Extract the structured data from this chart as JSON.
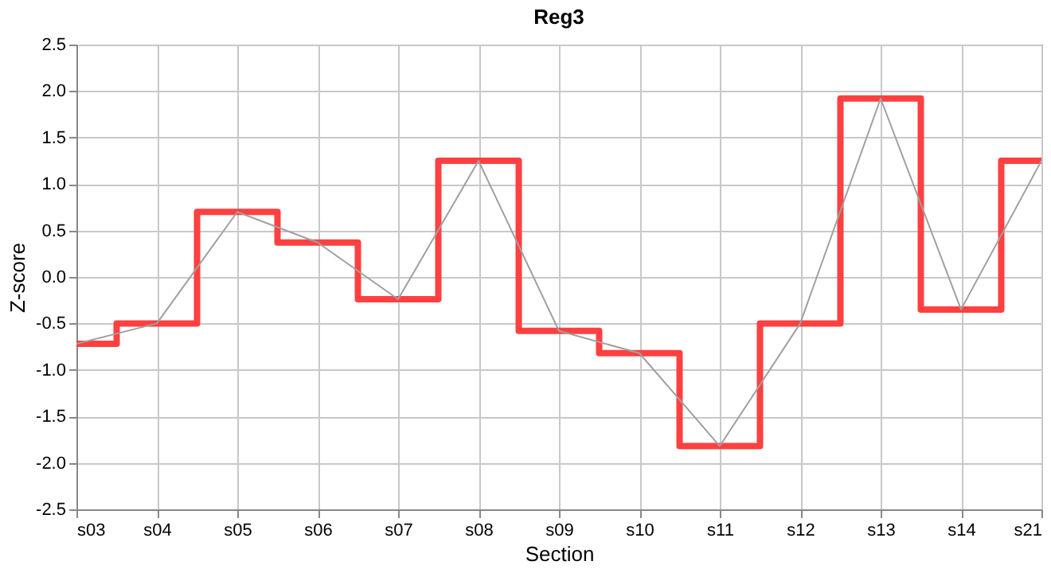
{
  "chart_data": {
    "type": "line",
    "title": "Reg3",
    "xlabel": "Section",
    "ylabel": "Z-score",
    "categories": [
      "s03",
      "s04",
      "s05",
      "s06",
      "s07",
      "s08",
      "s09",
      "s10",
      "s11",
      "s12",
      "s13",
      "s14",
      "s21"
    ],
    "series": [
      {
        "type": "step",
        "color": "#ff4040",
        "values": [
          -0.72,
          -0.5,
          0.7,
          0.37,
          -0.24,
          1.25,
          -0.58,
          -0.82,
          -1.82,
          -0.5,
          1.92,
          -0.35,
          1.25
        ]
      },
      {
        "type": "line",
        "color": "#a0a0a0",
        "values": [
          -0.72,
          -0.5,
          0.7,
          0.37,
          -0.24,
          1.25,
          -0.58,
          -0.82,
          -1.82,
          -0.5,
          1.92,
          -0.35,
          1.25
        ]
      }
    ],
    "ylim": [
      -2.5,
      2.5
    ],
    "yticks": [
      {
        "value": -2.5,
        "label": "-2.5"
      },
      {
        "value": -2,
        "label": "-2.0"
      },
      {
        "value": -1.5,
        "label": "-1.5"
      },
      {
        "value": -1,
        "label": "-1.0"
      },
      {
        "value": -0.5,
        "label": "-0.5"
      },
      {
        "value": 0,
        "label": "0.0"
      },
      {
        "value": 0.5,
        "label": "0.5"
      },
      {
        "value": 1,
        "label": "1.0"
      },
      {
        "value": 1.5,
        "label": "1.5"
      },
      {
        "value": 2,
        "label": "2.0"
      },
      {
        "value": 2.5,
        "label": "2.5"
      }
    ],
    "grid": true,
    "marker": "none"
  }
}
